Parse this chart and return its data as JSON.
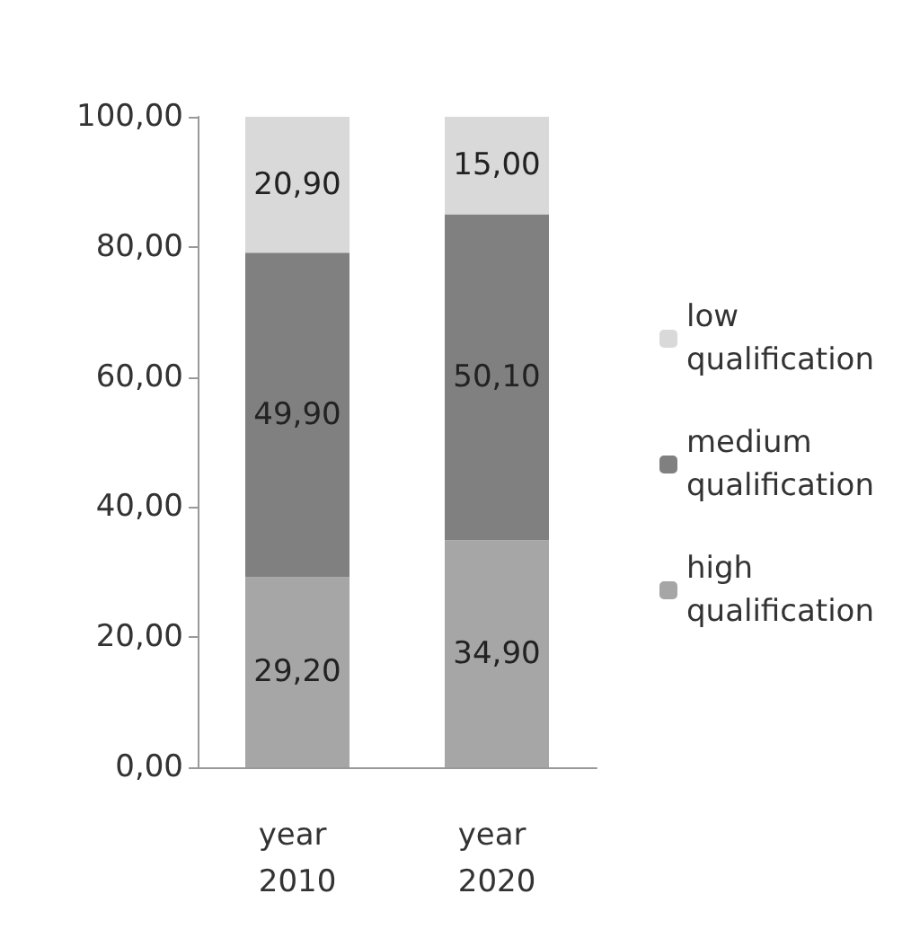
{
  "chart_data": {
    "type": "bar",
    "stacked": true,
    "categories": [
      "year 2010",
      "year 2020"
    ],
    "series": [
      {
        "name": "high qualification",
        "color": "#a6a6a6",
        "values": [
          29.2,
          34.9
        ],
        "value_labels": [
          "29,20",
          "34,90"
        ]
      },
      {
        "name": "medium qualification",
        "color": "#808080",
        "values": [
          49.9,
          50.1
        ],
        "value_labels": [
          "49,90",
          "50,10"
        ]
      },
      {
        "name": "low qualification",
        "color": "#d9d9d9",
        "values": [
          20.9,
          15.0
        ],
        "value_labels": [
          "20,90",
          "15,00"
        ]
      }
    ],
    "ylim": [
      0,
      100
    ],
    "yticks": [
      {
        "value": 0,
        "label": "0,00"
      },
      {
        "value": 20,
        "label": "20,00"
      },
      {
        "value": 40,
        "label": "40,00"
      },
      {
        "value": 60,
        "label": "60,00"
      },
      {
        "value": 80,
        "label": "80,00"
      },
      {
        "value": 100,
        "label": "100,00"
      }
    ],
    "grid": false,
    "legend": "right"
  }
}
